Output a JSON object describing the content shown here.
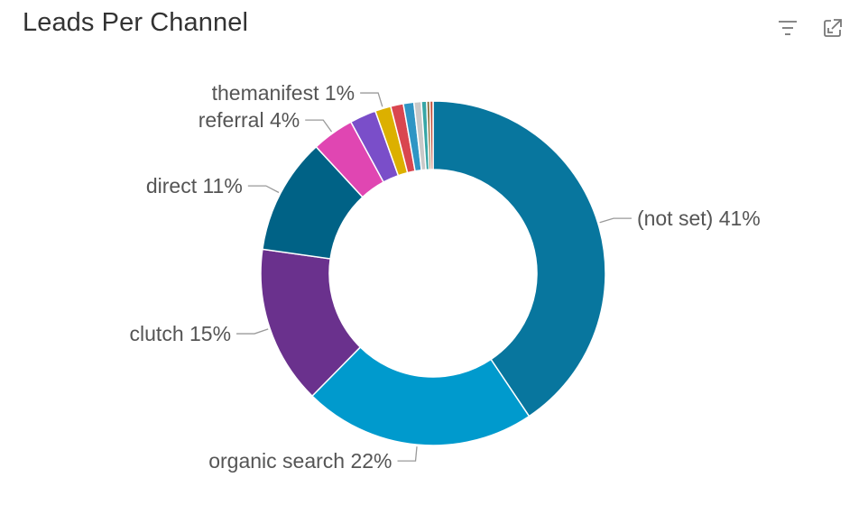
{
  "header": {
    "title": "Leads Per Channel",
    "filter_icon": "filter-icon",
    "expand_icon": "expand-icon"
  },
  "chart_data": {
    "type": "pie",
    "donut": true,
    "title": "Leads Per Channel",
    "slices": [
      {
        "label": "(not set)",
        "value": 41,
        "display": "(not set) 41%",
        "color": "#08769e"
      },
      {
        "label": "organic search",
        "value": 22,
        "display": "organic search 22%",
        "color": "#009acd"
      },
      {
        "label": "clutch",
        "value": 15,
        "display": "clutch 15%",
        "color": "#6a318d"
      },
      {
        "label": "direct",
        "value": 11,
        "display": "direct 11%",
        "color": "#006286"
      },
      {
        "label": "referral",
        "value": 4,
        "display": "referral 4%",
        "color": "#e046b2"
      },
      {
        "label": "",
        "value": 2.5,
        "display": "",
        "color": "#7a4ec9"
      },
      {
        "label": "themanifest",
        "value": 1.5,
        "display": "themanifest 1%",
        "color": "#dcb000"
      },
      {
        "label": "",
        "value": 1.2,
        "display": "",
        "color": "#d9464f"
      },
      {
        "label": "",
        "value": 1.0,
        "display": "",
        "color": "#2f95c4"
      },
      {
        "label": "",
        "value": 0.7,
        "display": "",
        "color": "#c9c9c9"
      },
      {
        "label": "",
        "value": 0.5,
        "display": "",
        "color": "#37a6a6"
      },
      {
        "label": "",
        "value": 0.3,
        "display": "",
        "color": "#8c6d3a"
      },
      {
        "label": "",
        "value": 0.3,
        "display": "",
        "color": "#c64f3a"
      }
    ]
  }
}
